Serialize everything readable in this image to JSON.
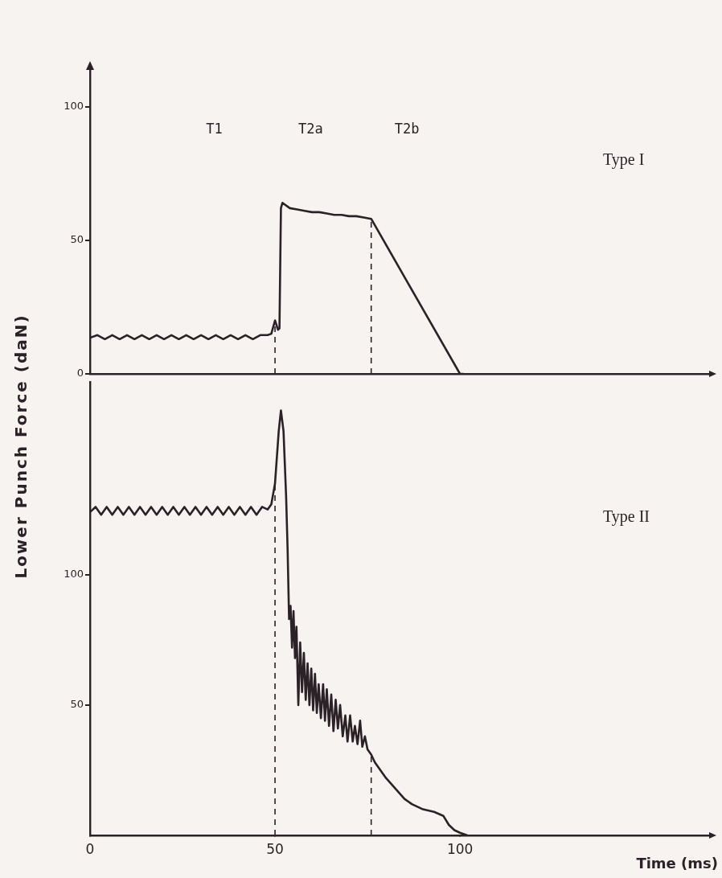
{
  "chart_data": [
    {
      "type": "line",
      "xlim": [
        0,
        168
      ],
      "xticks": [
        0,
        50,
        100
      ],
      "ylim": [
        0,
        114
      ],
      "yticks": [
        0,
        50,
        100
      ],
      "tick_labels": "y",
      "marker": "none",
      "line_style": "solid",
      "x": [
        0,
        2,
        4,
        6,
        8,
        10,
        12,
        14,
        16,
        18,
        20,
        22,
        24,
        26,
        28,
        30,
        32,
        34,
        36,
        38,
        40,
        42,
        44,
        46,
        48,
        49,
        50,
        50.8,
        51.2,
        51.6,
        52,
        54,
        56,
        58,
        60,
        62,
        64,
        66,
        68,
        70,
        72,
        74,
        76,
        100,
        101
      ],
      "series": [
        {
          "color": "#2b2228",
          "values": [
            13.5,
            14.5,
            13,
            14.5,
            13,
            14.5,
            13,
            14.5,
            13,
            14.5,
            13,
            14.5,
            13,
            14.5,
            13,
            14.5,
            13,
            14.5,
            13,
            14.5,
            13,
            14.5,
            13,
            14.5,
            14.5,
            15,
            20,
            16.5,
            17,
            62,
            64,
            62,
            61.5,
            61,
            60.5,
            60.5,
            60,
            59.5,
            59.5,
            59,
            59,
            58.5,
            58,
            0,
            0
          ]
        }
      ],
      "ref_lines": [
        {
          "axis": "x",
          "value": 50,
          "line_style": "dashed"
        },
        {
          "axis": "x",
          "value": 76,
          "line_style": "dashed"
        }
      ],
      "annotations": [
        "T1",
        "T2a",
        "T2b",
        "Type I"
      ]
    },
    {
      "type": "line",
      "xlim": [
        0,
        168
      ],
      "xticks": [
        0,
        50,
        100
      ],
      "ylim": [
        0,
        174
      ],
      "yticks": [
        50,
        100
      ],
      "marker": "none",
      "line_style": "solid",
      "xlabel": "Time (ms)",
      "ylabel": "Lower Punch Force (daN)",
      "x": [
        0,
        1.5,
        3,
        4.5,
        6,
        7.5,
        9,
        10.5,
        12,
        13.5,
        15,
        16.5,
        18,
        19.5,
        21,
        22.5,
        24,
        25.5,
        27,
        28.5,
        30,
        31.5,
        33,
        34.5,
        36,
        37.5,
        39,
        40.5,
        42,
        43.5,
        45,
        46.5,
        48,
        49,
        50,
        51,
        51.6,
        52.3,
        53,
        53.4,
        53.8,
        54.2,
        54.6,
        55,
        55.4,
        55.8,
        56.3,
        56.8,
        57.3,
        57.8,
        58.3,
        58.8,
        59.3,
        59.8,
        60.3,
        60.8,
        61.3,
        61.8,
        62.4,
        63,
        63.5,
        64,
        64.6,
        65.2,
        65.8,
        66.4,
        67,
        67.6,
        68.3,
        69,
        69.6,
        70.3,
        71,
        71.6,
        72.3,
        73,
        73.6,
        74.3,
        75,
        76,
        77,
        80,
        82.5,
        85,
        87,
        90,
        93,
        95.5,
        97,
        98.5,
        100,
        102
      ],
      "series": [
        {
          "color": "#2b2228",
          "values": [
            124,
            126,
            123,
            126,
            123,
            126,
            123,
            126,
            123,
            126,
            123,
            126,
            123,
            126,
            123,
            126,
            123,
            126,
            123,
            126,
            123,
            126,
            123,
            126,
            123,
            126,
            123,
            126,
            123,
            126,
            123,
            126,
            125,
            127,
            135,
            155,
            163,
            155,
            130,
            110,
            83,
            88,
            72,
            86,
            68,
            80,
            50,
            74,
            55,
            70,
            52,
            66,
            50,
            64,
            48,
            62,
            47,
            58,
            45,
            58,
            44,
            56,
            42,
            54,
            40,
            52,
            41,
            50,
            38,
            46,
            36,
            46,
            36,
            42,
            35,
            44,
            34,
            38,
            33,
            31,
            28,
            22,
            18,
            14,
            12,
            10,
            9,
            7.5,
            4,
            2,
            1,
            0
          ]
        }
      ],
      "ref_lines": [
        {
          "axis": "x",
          "value": 50,
          "line_style": "dashed"
        },
        {
          "axis": "x",
          "value": 76,
          "line_style": "dashed"
        }
      ],
      "annotations": [
        "Type II"
      ]
    }
  ]
}
